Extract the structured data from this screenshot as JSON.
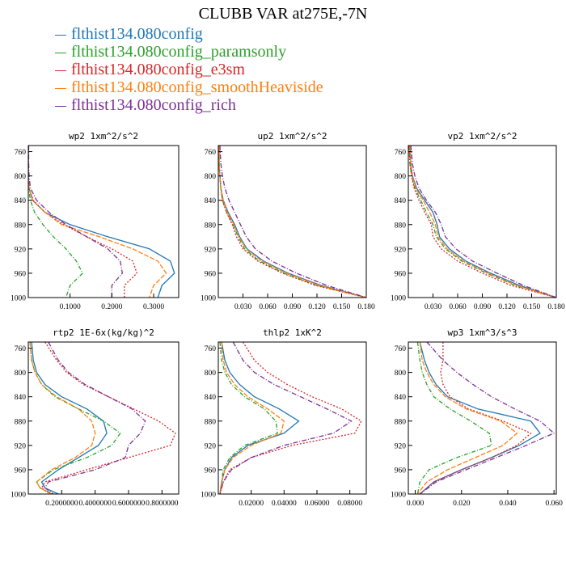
{
  "figure": {
    "title": "CLUBB VAR at275E,-7N",
    "legend": [
      {
        "label": "flthist134.080config",
        "color": "#1f77b4"
      },
      {
        "label": "flthist134.080config_paramsonly",
        "color": "#2ca02c"
      },
      {
        "label": "flthist134.080config_e3sm",
        "color": "#d62728"
      },
      {
        "label": "flthist134.080config_smoothHeaviside",
        "color": "#ff7f0e"
      },
      {
        "label": "flthist134.080config_rich",
        "color": "#7b3294"
      }
    ]
  },
  "chart_data": [
    {
      "type": "line",
      "title": "wp2  1xm^2/s^2",
      "xlim": [
        0,
        0.36
      ],
      "ylim": [
        1000,
        750
      ],
      "yticks": [
        760,
        800,
        840,
        880,
        920,
        960,
        1000
      ],
      "xticks": [
        0.1,
        0.2,
        0.3
      ],
      "xticklabels": [
        "0.1000",
        "0.2000",
        "0.3000"
      ],
      "y": [
        750,
        780,
        800,
        820,
        840,
        860,
        880,
        900,
        920,
        940,
        960,
        980,
        1000
      ],
      "series": [
        {
          "name": "flthist134.080config",
          "values": [
            0,
            0,
            0,
            0.002,
            0.01,
            0.04,
            0.1,
            0.19,
            0.29,
            0.34,
            0.35,
            0.32,
            0.31
          ]
        },
        {
          "name": "flthist134.080config_paramsonly",
          "values": [
            0,
            0,
            0,
            0.001,
            0.005,
            0.015,
            0.035,
            0.06,
            0.09,
            0.115,
            0.13,
            0.1,
            0.09
          ]
        },
        {
          "name": "flthist134.080config_e3sm",
          "values": [
            0,
            0,
            0,
            0.002,
            0.012,
            0.04,
            0.085,
            0.14,
            0.2,
            0.25,
            0.26,
            0.23,
            0.23
          ]
        },
        {
          "name": "flthist134.080config_smoothHeaviside",
          "values": [
            0,
            0,
            0,
            0.002,
            0.01,
            0.04,
            0.08,
            0.17,
            0.25,
            0.31,
            0.33,
            0.3,
            0.29
          ]
        },
        {
          "name": "flthist134.080config_rich",
          "values": [
            0.001,
            0.001,
            0.002,
            0.005,
            0.02,
            0.05,
            0.09,
            0.14,
            0.19,
            0.22,
            0.225,
            0.2,
            0.2
          ]
        }
      ]
    },
    {
      "type": "line",
      "title": "up2  1xm^2/s^2",
      "xlim": [
        0,
        0.18
      ],
      "ylim": [
        1000,
        750
      ],
      "yticks": [
        760,
        800,
        840,
        880,
        920,
        960,
        1000
      ],
      "xticks": [
        0.03,
        0.06,
        0.09,
        0.12,
        0.15,
        0.18
      ],
      "xticklabels": [
        "0.030",
        "0.060",
        "0.090",
        "0.120",
        "0.150",
        "0.180"
      ],
      "y": [
        750,
        780,
        800,
        820,
        840,
        860,
        880,
        900,
        920,
        940,
        960,
        980,
        1000
      ],
      "series": [
        {
          "name": "flthist134.080config",
          "values": [
            0.001,
            0.001,
            0.002,
            0.003,
            0.006,
            0.012,
            0.02,
            0.026,
            0.035,
            0.055,
            0.085,
            0.125,
            0.18
          ]
        },
        {
          "name": "flthist134.080config_paramsonly",
          "values": [
            0.001,
            0.001,
            0.002,
            0.003,
            0.005,
            0.01,
            0.018,
            0.024,
            0.032,
            0.05,
            0.08,
            0.12,
            0.18
          ]
        },
        {
          "name": "flthist134.080config_e3sm",
          "values": [
            0.001,
            0.001,
            0.002,
            0.003,
            0.005,
            0.01,
            0.017,
            0.022,
            0.03,
            0.048,
            0.078,
            0.118,
            0.18
          ]
        },
        {
          "name": "flthist134.080config_smoothHeaviside",
          "values": [
            0.001,
            0.001,
            0.002,
            0.003,
            0.006,
            0.011,
            0.019,
            0.025,
            0.034,
            0.053,
            0.083,
            0.123,
            0.18
          ]
        },
        {
          "name": "flthist134.080config_rich",
          "values": [
            0.002,
            0.003,
            0.005,
            0.008,
            0.013,
            0.02,
            0.027,
            0.034,
            0.045,
            0.065,
            0.095,
            0.132,
            0.18
          ]
        }
      ]
    },
    {
      "type": "line",
      "title": "vp2  1xm^2/s^2",
      "xlim": [
        0,
        0.18
      ],
      "ylim": [
        1000,
        750
      ],
      "yticks": [
        760,
        800,
        840,
        880,
        920,
        960,
        1000
      ],
      "xticks": [
        0.03,
        0.06,
        0.09,
        0.12,
        0.15,
        0.18
      ],
      "xticklabels": [
        "0.030",
        "0.060",
        "0.090",
        "0.120",
        "0.150",
        "0.180"
      ],
      "y": [
        750,
        780,
        800,
        820,
        840,
        860,
        880,
        900,
        920,
        940,
        960,
        980,
        1000
      ],
      "series": [
        {
          "name": "flthist134.080config",
          "values": [
            0.002,
            0.003,
            0.005,
            0.01,
            0.02,
            0.03,
            0.035,
            0.038,
            0.05,
            0.07,
            0.1,
            0.135,
            0.18
          ]
        },
        {
          "name": "flthist134.080config_paramsonly",
          "values": [
            0.001,
            0.002,
            0.004,
            0.008,
            0.015,
            0.022,
            0.03,
            0.034,
            0.045,
            0.065,
            0.095,
            0.13,
            0.18
          ]
        },
        {
          "name": "flthist134.080config_e3sm",
          "values": [
            0.001,
            0.002,
            0.004,
            0.007,
            0.013,
            0.02,
            0.028,
            0.03,
            0.04,
            0.06,
            0.09,
            0.125,
            0.18
          ]
        },
        {
          "name": "flthist134.080config_smoothHeaviside",
          "values": [
            0.002,
            0.003,
            0.005,
            0.009,
            0.018,
            0.026,
            0.033,
            0.036,
            0.047,
            0.067,
            0.097,
            0.132,
            0.18
          ]
        },
        {
          "name": "flthist134.080config_rich",
          "values": [
            0.003,
            0.005,
            0.008,
            0.013,
            0.022,
            0.033,
            0.04,
            0.045,
            0.058,
            0.078,
            0.108,
            0.14,
            0.18
          ]
        }
      ]
    },
    {
      "type": "line",
      "title": "rtp2  1E-6x(kg/kg)^2",
      "xlim": [
        0,
        0.9
      ],
      "ylim": [
        1000,
        750
      ],
      "yticks": [
        760,
        800,
        840,
        880,
        920,
        960,
        1000
      ],
      "xticks": [
        0.2,
        0.4,
        0.6,
        0.8
      ],
      "xticklabels": [
        "0.2000000",
        "0.4000000",
        "0.6000000",
        "0.8000000"
      ],
      "y": [
        750,
        780,
        800,
        820,
        840,
        860,
        880,
        900,
        920,
        940,
        960,
        980,
        990,
        1000
      ],
      "series": [
        {
          "name": "flthist134.080config",
          "values": [
            0.02,
            0.03,
            0.05,
            0.1,
            0.2,
            0.35,
            0.45,
            0.47,
            0.42,
            0.3,
            0.18,
            0.08,
            0.1,
            0.18
          ]
        },
        {
          "name": "flthist134.080config_paramsonly",
          "values": [
            0.01,
            0.02,
            0.04,
            0.08,
            0.16,
            0.3,
            0.45,
            0.55,
            0.5,
            0.35,
            0.15,
            0.05,
            0.07,
            0.15
          ]
        },
        {
          "name": "flthist134.080config_e3sm",
          "values": [
            0.1,
            0.17,
            0.23,
            0.33,
            0.48,
            0.63,
            0.78,
            0.88,
            0.85,
            0.6,
            0.35,
            0.1,
            0.08,
            0.13
          ]
        },
        {
          "name": "flthist134.080config_smoothHeaviside",
          "values": [
            0.01,
            0.02,
            0.04,
            0.08,
            0.17,
            0.3,
            0.38,
            0.4,
            0.38,
            0.28,
            0.14,
            0.05,
            0.07,
            0.14
          ]
        },
        {
          "name": "flthist134.080config_rich",
          "values": [
            0.12,
            0.18,
            0.24,
            0.34,
            0.48,
            0.62,
            0.7,
            0.67,
            0.6,
            0.58,
            0.4,
            0.12,
            0.1,
            0.15
          ]
        }
      ]
    },
    {
      "type": "line",
      "title": "thlp2  1xK^2",
      "xlim": [
        0,
        0.09
      ],
      "ylim": [
        1000,
        750
      ],
      "yticks": [
        760,
        800,
        840,
        880,
        920,
        960,
        1000
      ],
      "xticks": [
        0.02,
        0.04,
        0.06,
        0.08
      ],
      "xticklabels": [
        "0.02000",
        "0.04000",
        "0.06000",
        "0.08000"
      ],
      "y": [
        750,
        780,
        800,
        820,
        840,
        860,
        880,
        900,
        920,
        940,
        960,
        980,
        1000
      ],
      "series": [
        {
          "name": "flthist134.080config",
          "values": [
            0.002,
            0.004,
            0.007,
            0.013,
            0.022,
            0.037,
            0.049,
            0.04,
            0.018,
            0.008,
            0.004,
            0.002,
            0.001
          ]
        },
        {
          "name": "flthist134.080config_paramsonly",
          "values": [
            0.001,
            0.002,
            0.004,
            0.008,
            0.016,
            0.028,
            0.035,
            0.036,
            0.016,
            0.007,
            0.003,
            0.002,
            0.001
          ]
        },
        {
          "name": "flthist134.080config_e3sm",
          "values": [
            0.015,
            0.022,
            0.03,
            0.042,
            0.057,
            0.075,
            0.087,
            0.083,
            0.045,
            0.02,
            0.007,
            0.003,
            0.001
          ]
        },
        {
          "name": "flthist134.080config_smoothHeaviside",
          "values": [
            0.002,
            0.003,
            0.005,
            0.01,
            0.018,
            0.03,
            0.04,
            0.038,
            0.02,
            0.009,
            0.004,
            0.002,
            0.001
          ]
        },
        {
          "name": "flthist134.080config_rich",
          "values": [
            0.009,
            0.015,
            0.022,
            0.034,
            0.05,
            0.066,
            0.081,
            0.07,
            0.04,
            0.02,
            0.008,
            0.003,
            0.001
          ]
        }
      ]
    },
    {
      "type": "line",
      "title": "wp3  1xm^3/s^3",
      "xlim": [
        -0.003,
        0.061
      ],
      "ylim": [
        1000,
        750
      ],
      "yticks": [
        760,
        800,
        840,
        880,
        920,
        960,
        1000
      ],
      "xticks": [
        0,
        0.02,
        0.04,
        0.06
      ],
      "xticklabels": [
        "0.000",
        "0.020",
        "0.040",
        "0.060"
      ],
      "y": [
        750,
        780,
        800,
        820,
        840,
        860,
        880,
        900,
        920,
        940,
        960,
        980,
        1000
      ],
      "series": [
        {
          "name": "flthist134.080config",
          "values": [
            0.002,
            0.004,
            0.006,
            0.009,
            0.014,
            0.027,
            0.05,
            0.054,
            0.045,
            0.033,
            0.02,
            0.008,
            0.002
          ]
        },
        {
          "name": "flthist134.080config_paramsonly",
          "values": [
            0.001,
            0.002,
            0.003,
            0.005,
            0.008,
            0.015,
            0.024,
            0.032,
            0.033,
            0.018,
            0.006,
            0.002,
            0.001
          ]
        },
        {
          "name": "flthist134.080config_e3sm",
          "values": [
            0.012,
            0.012,
            0.011,
            0.012,
            0.015,
            0.023,
            0.038,
            0.05,
            0.044,
            0.033,
            0.02,
            0.008,
            0.002
          ]
        },
        {
          "name": "flthist134.080config_smoothHeaviside",
          "values": [
            0.002,
            0.003,
            0.005,
            0.008,
            0.013,
            0.022,
            0.037,
            0.044,
            0.038,
            0.026,
            0.014,
            0.005,
            0.001
          ]
        },
        {
          "name": "flthist134.080config_rich",
          "values": [
            0.005,
            0.012,
            0.018,
            0.025,
            0.033,
            0.043,
            0.054,
            0.06,
            0.048,
            0.035,
            0.022,
            0.009,
            0.002
          ]
        }
      ]
    }
  ]
}
